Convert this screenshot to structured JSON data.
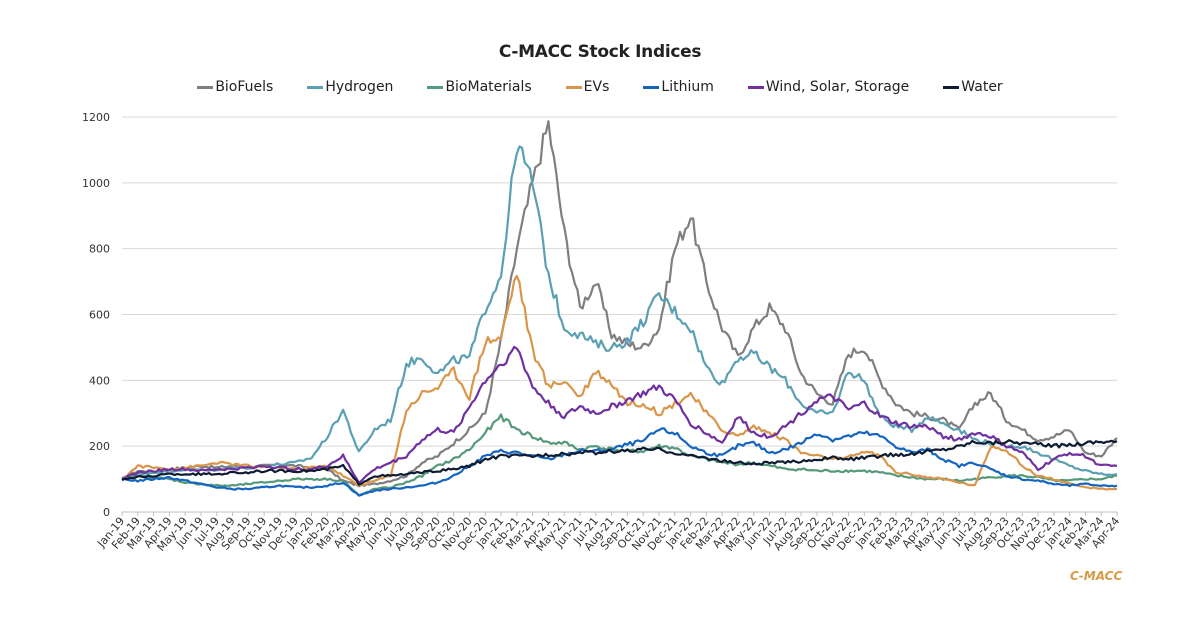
{
  "chart_data": {
    "type": "line",
    "title": "C-MACC Stock Indices",
    "xlabel": "",
    "ylabel": "",
    "ylim": [
      0,
      1200
    ],
    "yticks": [
      0,
      200,
      400,
      600,
      800,
      1000,
      1200
    ],
    "grid": true,
    "legend": "top",
    "x": [
      "Jan-19",
      "Feb-19",
      "Mar-19",
      "Apr-19",
      "May-19",
      "Jun-19",
      "Jul-19",
      "Aug-19",
      "Sep-19",
      "Oct-19",
      "Nov-19",
      "Dec-19",
      "Jan-20",
      "Feb-20",
      "Mar-20",
      "Apr-20",
      "May-20",
      "Jun-20",
      "Jul-20",
      "Aug-20",
      "Sep-20",
      "Oct-20",
      "Nov-20",
      "Dec-20",
      "Jan-21",
      "Feb-21",
      "Mar-21",
      "Apr-21",
      "May-21",
      "Jun-21",
      "Jul-21",
      "Aug-21",
      "Sep-21",
      "Oct-21",
      "Nov-21",
      "Dec-21",
      "Jan-22",
      "Feb-22",
      "Mar-22",
      "Apr-22",
      "May-22",
      "Jun-22",
      "Jul-22",
      "Aug-22",
      "Sep-22",
      "Oct-22",
      "Nov-22",
      "Dec-22",
      "Jan-23",
      "Feb-23",
      "Mar-23",
      "Apr-23",
      "May-23",
      "Jun-23",
      "Jul-23",
      "Aug-23",
      "Sep-23",
      "Oct-23",
      "Nov-23",
      "Dec-23",
      "Jan-24",
      "Feb-24",
      "Mar-24",
      "Apr-24"
    ],
    "series": [
      {
        "name": "BioFuels",
        "color": "#7f7f7f",
        "values": [
          100,
          125,
          120,
          130,
          135,
          140,
          135,
          140,
          135,
          140,
          145,
          140,
          135,
          130,
          95,
          80,
          85,
          95,
          110,
          150,
          170,
          210,
          250,
          300,
          520,
          800,
          1000,
          1180,
          850,
          620,
          700,
          540,
          510,
          500,
          560,
          800,
          900,
          700,
          560,
          470,
          560,
          620,
          560,
          420,
          360,
          330,
          480,
          500,
          400,
          330,
          300,
          290,
          280,
          250,
          330,
          360,
          280,
          250,
          220,
          230,
          250,
          180,
          170,
          225
        ]
      },
      {
        "name": "Hydrogen",
        "color": "#5b9fb3",
        "values": [
          100,
          115,
          120,
          125,
          130,
          130,
          125,
          135,
          135,
          140,
          145,
          150,
          165,
          230,
          310,
          180,
          250,
          280,
          450,
          470,
          420,
          460,
          470,
          620,
          720,
          1120,
          1000,
          720,
          560,
          540,
          510,
          500,
          520,
          580,
          660,
          610,
          560,
          440,
          390,
          470,
          480,
          440,
          400,
          330,
          300,
          300,
          430,
          400,
          290,
          260,
          250,
          290,
          270,
          250,
          220,
          210,
          200,
          200,
          180,
          160,
          140,
          125,
          115,
          115
        ]
      },
      {
        "name": "BioMaterials",
        "color": "#55997a",
        "values": [
          100,
          110,
          105,
          100,
          90,
          85,
          80,
          80,
          85,
          90,
          95,
          100,
          100,
          100,
          95,
          50,
          70,
          75,
          90,
          110,
          140,
          160,
          190,
          240,
          290,
          250,
          230,
          210,
          210,
          190,
          200,
          190,
          185,
          185,
          200,
          195,
          170,
          160,
          150,
          145,
          150,
          140,
          130,
          130,
          125,
          125,
          125,
          125,
          120,
          110,
          105,
          100,
          100,
          95,
          100,
          105,
          110,
          110,
          105,
          95,
          95,
          100,
          100,
          110
        ]
      },
      {
        "name": "EVs",
        "color": "#d9964a",
        "values": [
          100,
          140,
          135,
          130,
          135,
          140,
          150,
          145,
          140,
          135,
          135,
          130,
          135,
          140,
          110,
          80,
          95,
          110,
          310,
          360,
          380,
          430,
          350,
          520,
          530,
          730,
          490,
          380,
          400,
          350,
          430,
          390,
          330,
          330,
          300,
          330,
          360,
          300,
          250,
          230,
          260,
          240,
          220,
          180,
          170,
          160,
          165,
          185,
          170,
          120,
          115,
          105,
          100,
          90,
          80,
          200,
          190,
          140,
          110,
          100,
          85,
          75,
          70,
          70
        ]
      },
      {
        "name": "Lithium",
        "color": "#1565c0",
        "values": [
          100,
          95,
          100,
          105,
          95,
          85,
          75,
          70,
          70,
          75,
          80,
          75,
          75,
          80,
          90,
          50,
          65,
          70,
          75,
          80,
          90,
          110,
          140,
          170,
          185,
          180,
          170,
          160,
          175,
          185,
          185,
          190,
          205,
          215,
          250,
          240,
          200,
          180,
          170,
          200,
          210,
          180,
          190,
          210,
          240,
          220,
          230,
          240,
          230,
          200,
          180,
          190,
          160,
          140,
          150,
          130,
          110,
          100,
          95,
          85,
          80,
          85,
          80,
          80
        ]
      },
      {
        "name": "Wind, Solar, Storage",
        "color": "#7030a0",
        "values": [
          100,
          120,
          125,
          130,
          130,
          125,
          130,
          130,
          135,
          140,
          135,
          130,
          130,
          140,
          170,
          90,
          130,
          150,
          170,
          220,
          250,
          240,
          320,
          400,
          450,
          500,
          380,
          330,
          290,
          320,
          300,
          320,
          340,
          360,
          380,
          340,
          270,
          240,
          210,
          290,
          240,
          230,
          260,
          300,
          340,
          350,
          310,
          330,
          290,
          270,
          260,
          260,
          230,
          220,
          240,
          230,
          200,
          180,
          130,
          160,
          180,
          170,
          140,
          140
        ]
      },
      {
        "name": "Water",
        "color": "#0d1b33",
        "values": [
          100,
          105,
          110,
          115,
          115,
          115,
          115,
          120,
          120,
          125,
          125,
          125,
          125,
          130,
          140,
          85,
          110,
          110,
          115,
          120,
          125,
          130,
          140,
          160,
          170,
          170,
          170,
          175,
          175,
          180,
          180,
          185,
          185,
          190,
          190,
          180,
          170,
          165,
          155,
          150,
          145,
          150,
          150,
          155,
          160,
          165,
          160,
          165,
          170,
          175,
          175,
          185,
          190,
          200,
          215,
          210,
          215,
          210,
          205,
          200,
          205,
          210,
          215,
          215
        ]
      }
    ]
  },
  "brand": "C-MACC"
}
